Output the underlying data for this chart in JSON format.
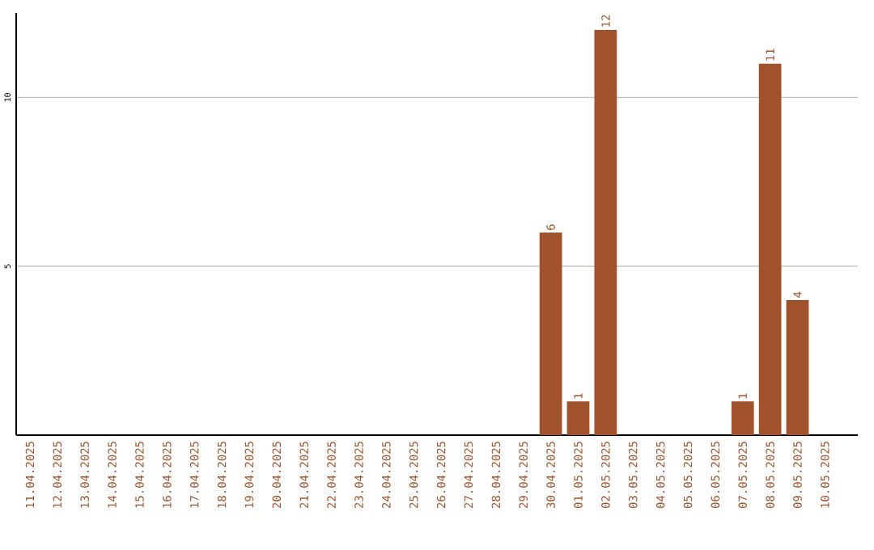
{
  "chart_data": {
    "type": "bar",
    "categories": [
      "11.04.2025",
      "12.04.2025",
      "13.04.2025",
      "14.04.2025",
      "15.04.2025",
      "16.04.2025",
      "17.04.2025",
      "18.04.2025",
      "19.04.2025",
      "20.04.2025",
      "21.04.2025",
      "22.04.2025",
      "23.04.2025",
      "24.04.2025",
      "25.04.2025",
      "26.04.2025",
      "27.04.2025",
      "28.04.2025",
      "29.04.2025",
      "30.04.2025",
      "01.05.2025",
      "02.05.2025",
      "03.05.2025",
      "04.05.2025",
      "05.05.2025",
      "06.05.2025",
      "07.05.2025",
      "08.05.2025",
      "09.05.2025",
      "10.05.2025"
    ],
    "values": [
      0,
      0,
      0,
      0,
      0,
      0,
      0,
      0,
      0,
      0,
      0,
      0,
      0,
      0,
      0,
      0,
      0,
      0,
      0,
      6,
      1,
      12,
      0,
      0,
      0,
      0,
      1,
      11,
      4,
      0
    ],
    "value_labels": [
      null,
      null,
      null,
      null,
      null,
      null,
      null,
      null,
      null,
      null,
      null,
      null,
      null,
      null,
      null,
      null,
      null,
      null,
      null,
      "6",
      "1",
      "12",
      null,
      null,
      null,
      null,
      "1",
      "11",
      "4",
      null
    ],
    "color": "#a0522d",
    "ylim": [
      0,
      12.5
    ],
    "yticks": [
      5,
      10
    ],
    "grid": "y"
  }
}
